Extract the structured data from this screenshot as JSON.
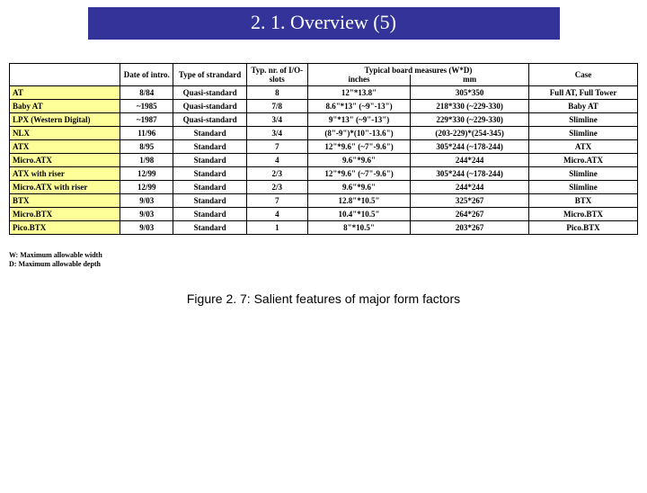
{
  "title": "2. 1. Overview (5)",
  "table": {
    "columns": [
      "",
      "Date of intro.",
      "Type of strandard",
      "Typ. nr. of I/O-slots",
      "Typical board measures (W*D) inches",
      "Typical board measures (W*D) mm",
      "Case"
    ],
    "header_group": {
      "span_label": "Typical board measures (W*D)",
      "sub_inches": "inches",
      "sub_mm": "mm"
    },
    "rows": [
      {
        "label": "AT",
        "cells": [
          "8/84",
          "Quasi-standard",
          "8",
          "12\"*13.8\"",
          "305*350",
          "Full AT, Full Tower"
        ]
      },
      {
        "label": "Baby AT",
        "cells": [
          "~1985",
          "Quasi-standard",
          "7/8",
          "8.6\"*13\" (~9\"-13\")",
          "218*330 (~229-330)",
          "Baby AT"
        ]
      },
      {
        "label": "LPX (Western Digital)",
        "cells": [
          "~1987",
          "Quasi-standard",
          "3/4",
          "9\"*13\" (~9\"-13\")",
          "229*330 (~229-330)",
          "Slimline"
        ]
      },
      {
        "label": "NLX",
        "cells": [
          "11/96",
          "Standard",
          "3/4",
          "(8\"-9\")*(10\"-13.6\")",
          "(203-229)*(254-345)",
          "Slimline"
        ]
      },
      {
        "label": "ATX",
        "cells": [
          "8/95",
          "Standard",
          "7",
          "12\"*9.6\" (~7\"-9.6\")",
          "305*244 (~178-244)",
          "ATX"
        ]
      },
      {
        "label": "Micro.ATX",
        "cells": [
          "1/98",
          "Standard",
          "4",
          "9.6\"*9.6\"",
          "244*244",
          "Micro.ATX"
        ]
      },
      {
        "label": "ATX with riser",
        "cells": [
          "12/99",
          "Standard",
          "2/3",
          "12\"*9.6\" (~7\"-9.6\")",
          "305*244 (~178-244)",
          "Slimline"
        ]
      },
      {
        "label": "Micro.ATX with riser",
        "cells": [
          "12/99",
          "Standard",
          "2/3",
          "9.6\"*9.6\"",
          "244*244",
          "Slimline"
        ]
      },
      {
        "label": "BTX",
        "cells": [
          "9/03",
          "Standard",
          "7",
          "12.8\"*10.5\"",
          "325*267",
          "BTX"
        ]
      },
      {
        "label": "Micro.BTX",
        "cells": [
          "9/03",
          "Standard",
          "4",
          "10.4\"*10.5\"",
          "264*267",
          "Micro.BTX"
        ]
      },
      {
        "label": "Pico.BTX",
        "cells": [
          "9/03",
          "Standard",
          "1",
          "8\"*10.5\"",
          "203*267",
          "Pico.BTX"
        ]
      }
    ]
  },
  "notes": {
    "line1": "W: Maximum allowable width",
    "line2": "D: Maximum allowable depth"
  },
  "caption": "Figure 2. 7: Salient features of major form factors",
  "colors": {
    "title_bg": "#333399",
    "title_fg": "#ffffff",
    "row_label_bg": "#ffff99",
    "border": "#000000",
    "background": "#ffffff",
    "text": "#000000"
  }
}
